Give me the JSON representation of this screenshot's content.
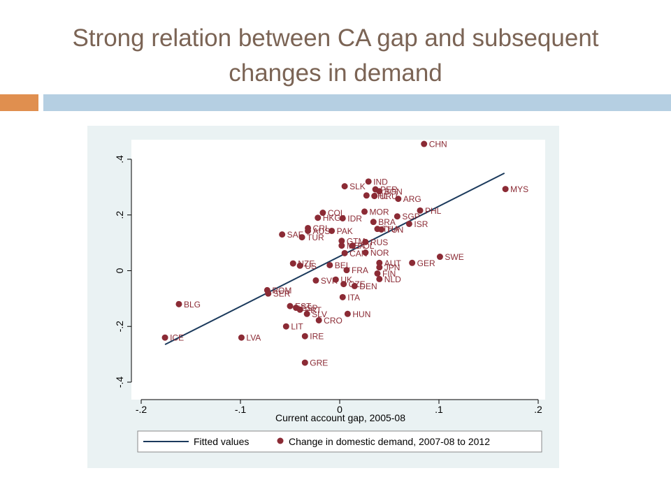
{
  "slide": {
    "title_line1": "Strong relation between CA gap and subsequent",
    "title_line2": "changes in demand"
  },
  "colors": {
    "title": "#7b6455",
    "accent_orange": "#e08f4f",
    "accent_blue": "#b5cfe2",
    "chart_background": "#eaf2f3",
    "marker": "#8b2b35",
    "fit_line": "#1b3a5c"
  },
  "chart_data": {
    "type": "scatter",
    "title": "",
    "xlabel": "Current account gap, 2005-08",
    "ylabel": "",
    "xlim": [
      -0.2,
      0.2
    ],
    "ylim": [
      -0.4,
      0.45
    ],
    "x_ticks": [
      "-.2",
      "-.1",
      "0",
      ".1",
      ".2"
    ],
    "x_tick_values": [
      -0.2,
      -0.1,
      0,
      0.1,
      0.2
    ],
    "y_ticks": [
      "-.4",
      "-.2",
      "0",
      ".2",
      ".4"
    ],
    "y_tick_values": [
      -0.4,
      -0.2,
      0,
      0.2,
      0.4
    ],
    "grid": "none",
    "legend_placement": "bottom",
    "legend": {
      "fitted": "Fitted values",
      "points": "Change in domestic demand, 2007-08 to 2012"
    },
    "fitted_line": {
      "x": [
        -0.176,
        0.166
      ],
      "y": [
        -0.265,
        0.35
      ]
    },
    "points": [
      {
        "label": "CHN",
        "x": 0.085,
        "y": 0.455
      },
      {
        "label": "MYS",
        "x": 0.167,
        "y": 0.293
      },
      {
        "label": "IND",
        "x": 0.029,
        "y": 0.32
      },
      {
        "label": "SLK",
        "x": 0.005,
        "y": 0.303
      },
      {
        "label": "PER",
        "x": 0.036,
        "y": 0.292
      },
      {
        "label": "BGN",
        "x": 0.04,
        "y": 0.285
      },
      {
        "label": "CHL",
        "x": 0.027,
        "y": 0.27
      },
      {
        "label": "URU",
        "x": 0.035,
        "y": 0.268
      },
      {
        "label": "ARG",
        "x": 0.059,
        "y": 0.258
      },
      {
        "label": "PHL",
        "x": 0.081,
        "y": 0.216
      },
      {
        "label": "MOR",
        "x": 0.025,
        "y": 0.212
      },
      {
        "label": "SGP",
        "x": 0.058,
        "y": 0.195
      },
      {
        "label": "COL",
        "x": -0.017,
        "y": 0.208
      },
      {
        "label": "HKG",
        "x": -0.022,
        "y": 0.19
      },
      {
        "label": "IDR",
        "x": 0.003,
        "y": 0.188
      },
      {
        "label": "BRA",
        "x": 0.034,
        "y": 0.175
      },
      {
        "label": "ISR",
        "x": 0.07,
        "y": 0.168
      },
      {
        "label": "CRI",
        "x": -0.032,
        "y": 0.153
      },
      {
        "label": "AUS",
        "x": -0.032,
        "y": 0.143
      },
      {
        "label": "PAK",
        "x": -0.008,
        "y": 0.143
      },
      {
        "label": "THA",
        "x": 0.038,
        "y": 0.15
      },
      {
        "label": "TUN",
        "x": 0.042,
        "y": 0.148
      },
      {
        "label": "SAF",
        "x": -0.058,
        "y": 0.13
      },
      {
        "label": "TUR",
        "x": -0.038,
        "y": 0.12
      },
      {
        "label": "GTM",
        "x": 0.002,
        "y": 0.107
      },
      {
        "label": "RUS",
        "x": 0.026,
        "y": 0.103
      },
      {
        "label": "MEX",
        "x": 0.002,
        "y": 0.09
      },
      {
        "label": "POL",
        "x": 0.013,
        "y": 0.09
      },
      {
        "label": "NOR",
        "x": 0.026,
        "y": 0.065
      },
      {
        "label": "CAN",
        "x": 0.005,
        "y": 0.063
      },
      {
        "label": "NZE",
        "x": -0.047,
        "y": 0.026
      },
      {
        "label": "US",
        "x": -0.04,
        "y": 0.018
      },
      {
        "label": "BEL",
        "x": -0.01,
        "y": 0.02
      },
      {
        "label": "FRA",
        "x": 0.007,
        "y": 0.002
      },
      {
        "label": "AUT",
        "x": 0.04,
        "y": 0.028
      },
      {
        "label": "GER",
        "x": 0.073,
        "y": 0.028
      },
      {
        "label": "SWE",
        "x": 0.101,
        "y": 0.05
      },
      {
        "label": "JPN",
        "x": 0.04,
        "y": 0.012
      },
      {
        "label": "FIN",
        "x": 0.038,
        "y": -0.01
      },
      {
        "label": "NLD",
        "x": 0.04,
        "y": -0.03
      },
      {
        "label": "SVK",
        "x": -0.024,
        "y": -0.035
      },
      {
        "label": "UK",
        "x": -0.004,
        "y": -0.032
      },
      {
        "label": "CZE",
        "x": 0.004,
        "y": -0.048
      },
      {
        "label": "DEN",
        "x": 0.015,
        "y": -0.055
      },
      {
        "label": "ROM",
        "x": -0.073,
        "y": -0.07
      },
      {
        "label": "SER",
        "x": -0.072,
        "y": -0.082
      },
      {
        "label": "ITA",
        "x": 0.003,
        "y": -0.095
      },
      {
        "label": "BLG",
        "x": -0.162,
        "y": -0.12
      },
      {
        "label": "EST",
        "x": -0.05,
        "y": -0.127
      },
      {
        "label": "ESP",
        "x": -0.044,
        "y": -0.133
      },
      {
        "label": "PRT",
        "x": -0.04,
        "y": -0.14
      },
      {
        "label": "SLV",
        "x": -0.033,
        "y": -0.155
      },
      {
        "label": "HUN",
        "x": 0.008,
        "y": -0.155
      },
      {
        "label": "CRO",
        "x": -0.021,
        "y": -0.178
      },
      {
        "label": "LIT",
        "x": -0.054,
        "y": -0.2
      },
      {
        "label": "LVA",
        "x": -0.099,
        "y": -0.24
      },
      {
        "label": "IRE",
        "x": -0.035,
        "y": -0.235
      },
      {
        "label": "ICE",
        "x": -0.176,
        "y": -0.24
      },
      {
        "label": "GRE",
        "x": -0.035,
        "y": -0.33
      }
    ]
  }
}
